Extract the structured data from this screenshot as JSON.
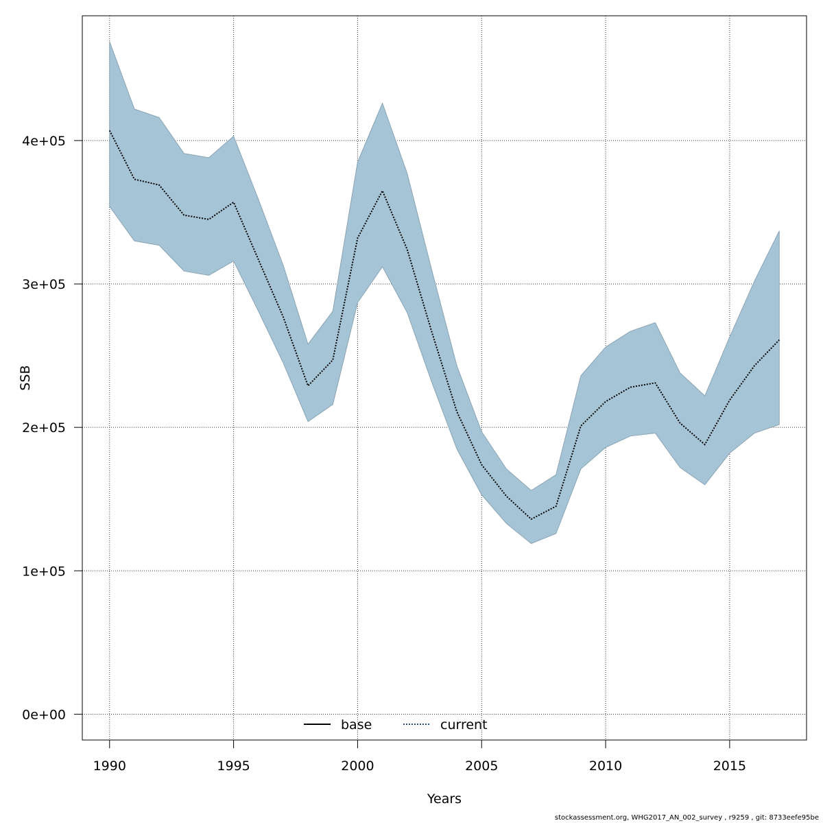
{
  "chart_data": {
    "type": "area",
    "xlabel": "Years",
    "ylabel": "SSB",
    "xlim": [
      1988.9,
      2018.1
    ],
    "ylim": [
      -18000,
      487000
    ],
    "grid": true,
    "x_ticks": [
      1990,
      1995,
      2000,
      2005,
      2010,
      2015
    ],
    "x_tick_labels": [
      "1990",
      "1995",
      "2000",
      "2005",
      "2010",
      "2015"
    ],
    "y_ticks": [
      0,
      100000,
      200000,
      300000,
      400000
    ],
    "y_tick_labels": [
      "0e+00",
      "1e+05",
      "2e+05",
      "3e+05",
      "4e+05"
    ],
    "legend_position": "bottom-center",
    "legend": [
      {
        "label": "base",
        "style": "solid",
        "color": "#000000"
      },
      {
        "label": "current",
        "style": "dotted",
        "color": "#1f4e79"
      }
    ],
    "x": [
      1990,
      1991,
      1992,
      1993,
      1994,
      1995,
      1996,
      1997,
      1998,
      1999,
      2000,
      2001,
      2002,
      2003,
      2004,
      2005,
      2006,
      2007,
      2008,
      2009,
      2010,
      2011,
      2012,
      2013,
      2014,
      2015,
      2016,
      2017
    ],
    "series": [
      {
        "name": "current",
        "values": [
          407000,
          373000,
          369000,
          348000,
          345000,
          357000,
          317000,
          277000,
          229000,
          247000,
          332000,
          365000,
          324000,
          266000,
          211000,
          174000,
          152000,
          136000,
          145000,
          201000,
          218000,
          228000,
          231000,
          203000,
          188000,
          219000,
          243000,
          261000
        ],
        "lower": [
          354000,
          330000,
          327000,
          309000,
          306000,
          316000,
          281000,
          245000,
          204000,
          216000,
          287000,
          312000,
          280000,
          231000,
          185000,
          153000,
          133000,
          119000,
          126000,
          171000,
          186000,
          194000,
          196000,
          172000,
          160000,
          182000,
          196000,
          202000
        ],
        "upper": [
          469000,
          422000,
          416000,
          391000,
          388000,
          403000,
          359000,
          313000,
          258000,
          281000,
          385000,
          426000,
          377000,
          309000,
          243000,
          197000,
          171000,
          156000,
          167000,
          236000,
          256000,
          267000,
          273000,
          238000,
          222000,
          263000,
          302000,
          337000
        ]
      }
    ],
    "band_color": "#a5c4d5",
    "line_color": "#000000"
  },
  "footer": "stockassessment.org, WHG2017_AN_002_survey , r9259 , git: 8733eefe95be"
}
